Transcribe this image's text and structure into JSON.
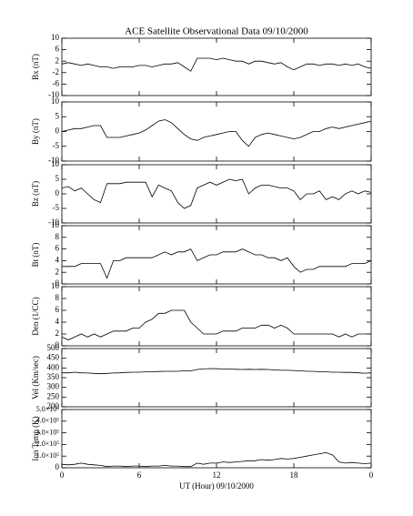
{
  "chart_data": [
    {
      "type": "line",
      "title": "ACE Satellite Observational Data  09/10/2000",
      "ylabel": "Bx (nT)",
      "color": "#000000",
      "xlim": [
        0,
        24
      ],
      "ylim": [
        -10,
        10
      ],
      "yticks": [
        -10,
        -6,
        -2,
        2,
        6,
        10
      ],
      "x": [
        0,
        0.5,
        1,
        1.5,
        2,
        2.5,
        3,
        3.5,
        4,
        4.5,
        5,
        5.5,
        6,
        6.5,
        7,
        7.5,
        8,
        8.5,
        9,
        9.5,
        10,
        10.5,
        11,
        11.5,
        12,
        12.5,
        13,
        13.5,
        14,
        14.5,
        15,
        15.5,
        16,
        16.5,
        17,
        17.5,
        18,
        18.5,
        19,
        19.5,
        20,
        20.5,
        21,
        21.5,
        22,
        22.5,
        23,
        23.5,
        24
      ],
      "values": [
        1,
        1.5,
        1,
        0.5,
        1,
        0.5,
        0,
        0,
        -0.5,
        0,
        0,
        0,
        0.5,
        0.5,
        0,
        0.5,
        1,
        1,
        1.5,
        0,
        -1.5,
        3,
        3,
        3,
        2.5,
        3,
        2.5,
        2,
        2,
        1,
        2,
        2,
        1.5,
        1,
        1.5,
        0,
        -1,
        0,
        1,
        1,
        0.5,
        1,
        1,
        0.5,
        1,
        0.5,
        1,
        0,
        -0.5
      ]
    },
    {
      "type": "line",
      "ylabel": "By (nT)",
      "color": "#000000",
      "xlim": [
        0,
        24
      ],
      "ylim": [
        -10,
        10
      ],
      "yticks": [
        -10,
        -5,
        0,
        5,
        10
      ],
      "x": [
        0,
        0.5,
        1,
        1.5,
        2,
        2.5,
        3,
        3.5,
        4,
        4.5,
        5,
        5.5,
        6,
        6.5,
        7,
        7.5,
        8,
        8.5,
        9,
        9.5,
        10,
        10.5,
        11,
        11.5,
        12,
        12.5,
        13,
        13.5,
        14,
        14.5,
        15,
        15.5,
        16,
        16.5,
        17,
        17.5,
        18,
        18.5,
        19,
        19.5,
        20,
        20.5,
        21,
        21.5,
        22,
        22.5,
        23,
        23.5,
        24
      ],
      "values": [
        0,
        0.5,
        1,
        1,
        1.5,
        2,
        2,
        -2,
        -2,
        -2,
        -1.5,
        -1,
        -0.5,
        0.5,
        2,
        3.5,
        4,
        3,
        1,
        -1,
        -2.5,
        -3,
        -2,
        -1.5,
        -1,
        -0.5,
        0,
        0,
        -3,
        -5,
        -2,
        -1,
        -0.5,
        -1,
        -1.5,
        -2,
        -2.5,
        -2,
        -1,
        0,
        0,
        1,
        1.5,
        1,
        1.5,
        2,
        2.5,
        3,
        3.5
      ]
    },
    {
      "type": "line",
      "ylabel": "Bz (nT)",
      "color": "#000000",
      "xlim": [
        0,
        24
      ],
      "ylim": [
        -10,
        10
      ],
      "yticks": [
        -10,
        -5,
        0,
        5,
        10
      ],
      "x": [
        0,
        0.5,
        1,
        1.5,
        2,
        2.5,
        3,
        3.5,
        4,
        4.5,
        5,
        5.5,
        6,
        6.5,
        7,
        7.5,
        8,
        8.5,
        9,
        9.5,
        10,
        10.5,
        11,
        11.5,
        12,
        12.5,
        13,
        13.5,
        14,
        14.5,
        15,
        15.5,
        16,
        16.5,
        17,
        17.5,
        18,
        18.5,
        19,
        19.5,
        20,
        20.5,
        21,
        21.5,
        22,
        22.5,
        23,
        23.5,
        24
      ],
      "values": [
        2,
        2.5,
        1,
        2,
        0,
        -2,
        -3,
        3.5,
        3.5,
        3.5,
        4,
        4,
        4,
        4,
        -1,
        3,
        2,
        1,
        -3,
        -5,
        -4,
        2,
        3,
        4,
        3,
        4,
        5,
        4.5,
        5,
        0,
        2,
        3,
        3,
        2.5,
        2,
        2,
        1,
        -2,
        0,
        0,
        1,
        -2,
        -1,
        -2,
        0,
        1,
        0,
        1,
        0.5
      ]
    },
    {
      "type": "line",
      "ylabel": "Bt (nT)",
      "color": "#000000",
      "xlim": [
        0,
        24
      ],
      "ylim": [
        0,
        10
      ],
      "yticks": [
        0,
        2,
        4,
        6,
        8,
        10
      ],
      "x": [
        0,
        0.5,
        1,
        1.5,
        2,
        2.5,
        3,
        3.5,
        4,
        4.5,
        5,
        5.5,
        6,
        6.5,
        7,
        7.5,
        8,
        8.5,
        9,
        9.5,
        10,
        10.5,
        11,
        11.5,
        12,
        12.5,
        13,
        13.5,
        14,
        14.5,
        15,
        15.5,
        16,
        16.5,
        17,
        17.5,
        18,
        18.5,
        19,
        19.5,
        20,
        20.5,
        21,
        21.5,
        22,
        22.5,
        23,
        23.5,
        24
      ],
      "values": [
        3,
        3,
        3,
        3.5,
        3.5,
        3.5,
        3.5,
        1,
        4,
        4,
        4.5,
        4.5,
        4.5,
        4.5,
        4.5,
        5,
        5.5,
        5,
        5.5,
        5.5,
        6,
        4,
        4.5,
        5,
        5,
        5.5,
        5.5,
        5.5,
        6,
        5.5,
        5,
        5,
        4.5,
        4.5,
        4,
        4.5,
        3,
        2,
        2.5,
        2.5,
        3,
        3,
        3,
        3,
        3,
        3.5,
        3.5,
        3.5,
        4
      ]
    },
    {
      "type": "line",
      "ylabel": "Den (1/CC)",
      "color": "#000000",
      "xlim": [
        0,
        24
      ],
      "ylim": [
        0,
        10
      ],
      "yticks": [
        0,
        2,
        4,
        6,
        8,
        10
      ],
      "x": [
        0,
        0.5,
        1,
        1.5,
        2,
        2.5,
        3,
        3.5,
        4,
        4.5,
        5,
        5.5,
        6,
        6.5,
        7,
        7.5,
        8,
        8.5,
        9,
        9.5,
        10,
        10.5,
        11,
        11.5,
        12,
        12.5,
        13,
        13.5,
        14,
        14.5,
        15,
        15.5,
        16,
        16.5,
        17,
        17.5,
        18,
        18.5,
        19,
        19.5,
        20,
        20.5,
        21,
        21.5,
        22,
        22.5,
        23,
        23.5,
        24
      ],
      "values": [
        1.5,
        1,
        1.5,
        2,
        1.5,
        2,
        1.5,
        2,
        2.5,
        2.5,
        2.5,
        3,
        3,
        4,
        4.5,
        5.5,
        5.5,
        6,
        6,
        6,
        4,
        3,
        2,
        2,
        2,
        2.5,
        2.5,
        2.5,
        3,
        3,
        3,
        3.5,
        3.5,
        3,
        3.5,
        3,
        2,
        2,
        2,
        2,
        2,
        2,
        2,
        1.5,
        2,
        1.5,
        2,
        2,
        2
      ]
    },
    {
      "type": "line",
      "ylabel": "Vel (Km/sec)",
      "color": "#000000",
      "xlim": [
        0,
        24
      ],
      "ylim": [
        200,
        500
      ],
      "yticks": [
        200,
        250,
        300,
        350,
        400,
        450,
        500
      ],
      "x": [
        0,
        0.5,
        1,
        1.5,
        2,
        2.5,
        3,
        3.5,
        4,
        4.5,
        5,
        5.5,
        6,
        6.5,
        7,
        7.5,
        8,
        8.5,
        9,
        9.5,
        10,
        10.5,
        11,
        11.5,
        12,
        12.5,
        13,
        13.5,
        14,
        14.5,
        15,
        15.5,
        16,
        16.5,
        17,
        17.5,
        18,
        18.5,
        19,
        19.5,
        20,
        20.5,
        21,
        21.5,
        22,
        22.5,
        23,
        23.5,
        24
      ],
      "values": [
        375,
        375,
        378,
        375,
        374,
        372,
        370,
        372,
        374,
        375,
        377,
        378,
        378,
        380,
        380,
        382,
        383,
        383,
        383,
        385,
        385,
        392,
        395,
        397,
        396,
        395,
        394,
        393,
        392,
        393,
        392,
        393,
        392,
        390,
        388,
        388,
        387,
        385,
        383,
        383,
        380,
        380,
        378,
        378,
        377,
        377,
        375,
        373,
        375
      ]
    },
    {
      "type": "line",
      "ylabel": "Ion Temp (K)",
      "color": "#000000",
      "xlim": [
        0,
        24
      ],
      "ylim": [
        0,
        500000
      ],
      "yticks": [
        0,
        {
          "value": 100000,
          "label": "1.0×10⁵"
        },
        {
          "value": 200000,
          "label": "2.0×10⁵"
        },
        {
          "value": 300000,
          "label": "3.0×10⁵"
        },
        {
          "value": 400000,
          "label": "4.0×10⁵"
        },
        {
          "value": 500000,
          "label": "5.0×10⁵"
        }
      ],
      "xticks": [
        0,
        6,
        12,
        18,
        {
          "value": 24,
          "label": "0"
        }
      ],
      "xlabel": "UT (Hour)  09/10/2000",
      "x": [
        0,
        0.5,
        1,
        1.5,
        2,
        2.5,
        3,
        3.5,
        4,
        4.5,
        5,
        5.5,
        6,
        6.5,
        7,
        7.5,
        8,
        8.5,
        9,
        9.5,
        10,
        10.5,
        11,
        11.5,
        12,
        12.5,
        13,
        13.5,
        14,
        14.5,
        15,
        15.5,
        16,
        16.5,
        17,
        17.5,
        18,
        18.5,
        19,
        19.5,
        20,
        20.5,
        21,
        21.5,
        22,
        22.5,
        23,
        23.5,
        24
      ],
      "values": [
        30000,
        25000,
        30000,
        40000,
        30000,
        25000,
        20000,
        10000,
        15000,
        15000,
        10000,
        15000,
        15000,
        10000,
        15000,
        15000,
        20000,
        15000,
        15000,
        10000,
        10000,
        40000,
        30000,
        40000,
        40000,
        50000,
        45000,
        50000,
        55000,
        60000,
        60000,
        70000,
        65000,
        70000,
        80000,
        75000,
        80000,
        90000,
        100000,
        110000,
        120000,
        130000,
        110000,
        50000,
        40000,
        45000,
        40000,
        35000,
        40000
      ]
    }
  ]
}
